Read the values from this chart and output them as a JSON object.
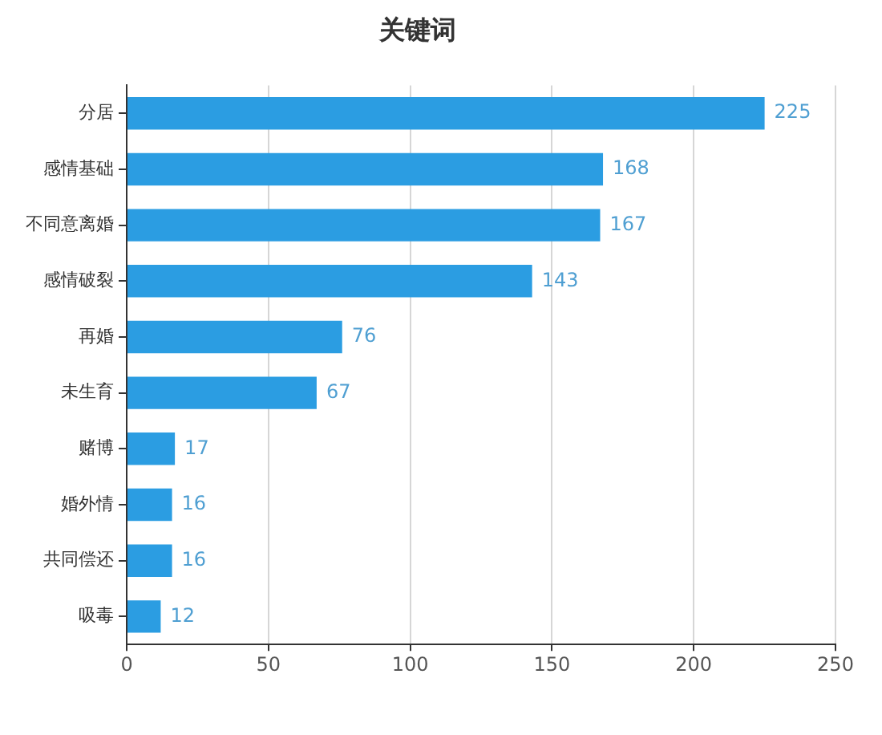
{
  "chart_data": {
    "type": "bar",
    "orientation": "horizontal",
    "title": "关键词",
    "categories": [
      "分居",
      "感情基础",
      "不同意离婚",
      "感情破裂",
      "再婚",
      "未生育",
      "赌博",
      "婚外情",
      "共同偿还",
      "吸毒"
    ],
    "values": [
      225,
      168,
      167,
      143,
      76,
      67,
      17,
      16,
      16,
      12
    ],
    "color": "#2b9de2",
    "xlim": [
      0,
      250
    ],
    "xticks": [
      0,
      50,
      100,
      150,
      200,
      250
    ],
    "grid": "x",
    "data_labels": true
  }
}
